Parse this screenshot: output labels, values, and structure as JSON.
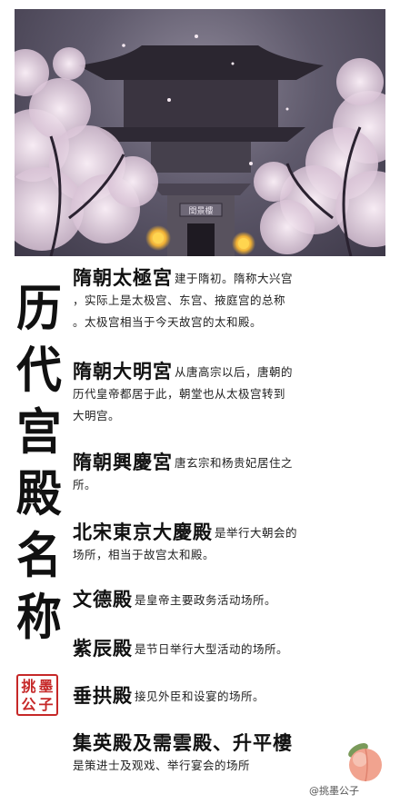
{
  "title_chars": [
    "历",
    "代",
    "宫",
    "殿",
    "名",
    "称"
  ],
  "seal_chars": [
    "挑",
    "墨",
    "公",
    "子"
  ],
  "hero_plaque": "閏景樓",
  "entries": [
    {
      "name": "隋朝太極宮",
      "lines": [
        "建于隋初。隋称大兴宫",
        "，实际上是太极宫、东宫、掖庭宫的总称",
        "。太极宫相当于今天故宫的太和殿。"
      ]
    },
    {
      "name": "隋朝大明宮",
      "lines": [
        "从唐高宗以后，唐朝的",
        "历代皇帝都居于此，朝堂也从太极宫转到",
        "大明宫。"
      ]
    },
    {
      "name": "隋朝興慶宮",
      "lines": [
        "唐玄宗和杨贵妃居住之",
        "所。"
      ]
    },
    {
      "name": "北宋東京大慶殿",
      "lines": [
        "是举行大朝会的",
        "场所，相当于故宫太和殿。"
      ]
    },
    {
      "name": "文德殿",
      "lines": [
        "是皇帝主要政务活动场所。"
      ]
    },
    {
      "name": "紫辰殿",
      "lines": [
        "是节日举行大型活动的场所。"
      ]
    },
    {
      "name": "垂拱殿",
      "lines": [
        "接见外臣和设宴的场所。"
      ]
    },
    {
      "name": "集英殿及需雲殿、升平樓",
      "lines": [
        "",
        "是策进士及观戏、举行宴会的场所"
      ]
    }
  ],
  "watermark": "@挑墨公子"
}
